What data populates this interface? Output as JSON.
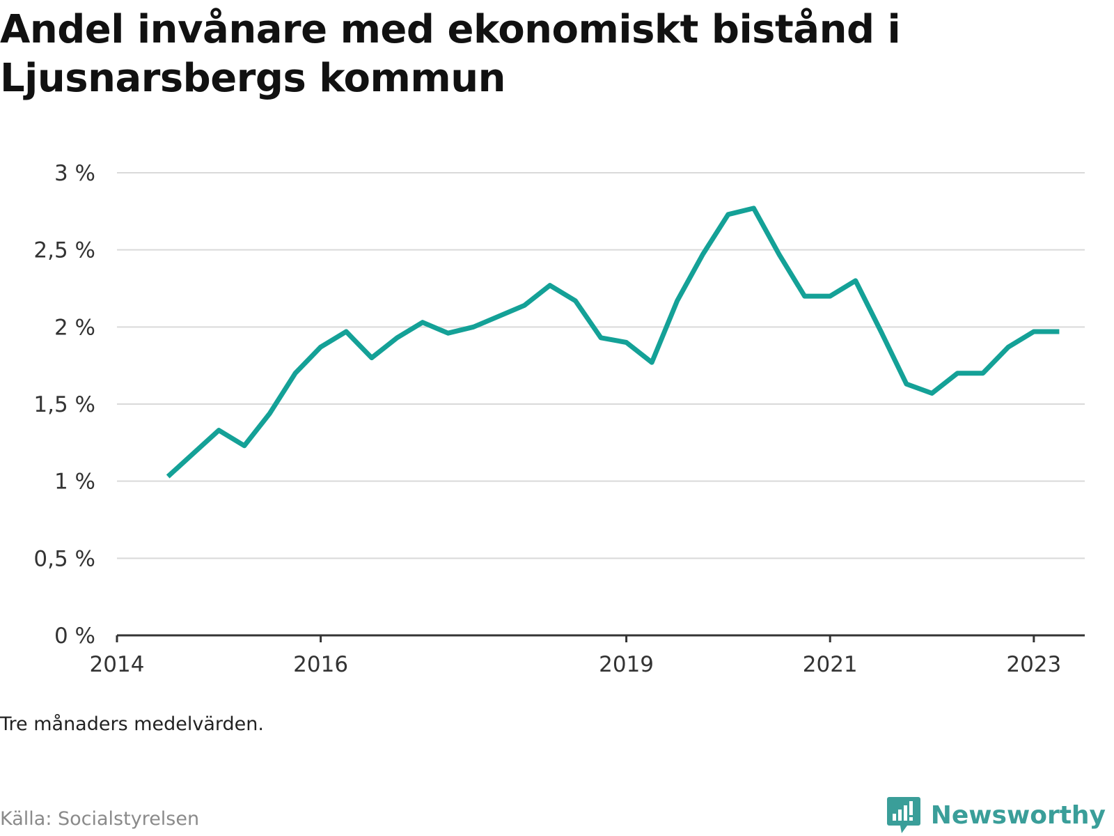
{
  "title": "Andel invånare med ekonomiskt bistånd i Ljusnarsbergs kommun",
  "note": "Tre månaders medelvärden.",
  "source": "Källa: Socialstyrelsen",
  "brand": "Newsworthy",
  "colors": {
    "line": "#14a197",
    "grid": "#d9d9d9",
    "axis": "#333333",
    "brand": "#3a9e99"
  },
  "chart_data": {
    "type": "line",
    "title": "Andel invånare med ekonomiskt bistånd i Ljusnarsbergs kommun",
    "xlabel": "",
    "ylabel": "",
    "ylim": [
      0,
      3
    ],
    "xlim": [
      "2014-01",
      "2023-07"
    ],
    "grid": true,
    "y_ticks": [
      {
        "value": 0,
        "label": "0 %"
      },
      {
        "value": 0.5,
        "label": "0,5 %"
      },
      {
        "value": 1,
        "label": "1 %"
      },
      {
        "value": 1.5,
        "label": "1,5 %"
      },
      {
        "value": 2,
        "label": "2 %"
      },
      {
        "value": 2.5,
        "label": "2,5 %"
      },
      {
        "value": 3,
        "label": "3 %"
      }
    ],
    "x_ticks": [
      {
        "value": "2014-01",
        "label": "2014"
      },
      {
        "value": "2016-01",
        "label": "2016"
      },
      {
        "value": "2019-01",
        "label": "2019"
      },
      {
        "value": "2021-01",
        "label": "2021"
      },
      {
        "value": "2023-01",
        "label": "2023"
      }
    ],
    "series": [
      {
        "x": [
          "2014-07",
          "2014-10",
          "2015-01",
          "2015-04",
          "2015-07",
          "2015-10",
          "2016-01",
          "2016-04",
          "2016-07",
          "2016-10",
          "2017-01",
          "2017-04",
          "2017-07",
          "2017-10",
          "2018-01",
          "2018-04",
          "2018-07",
          "2018-10",
          "2019-01",
          "2019-04",
          "2019-07",
          "2019-10",
          "2020-01",
          "2020-04",
          "2020-07",
          "2020-10",
          "2021-01",
          "2021-04",
          "2021-07",
          "2021-10",
          "2022-01",
          "2022-04",
          "2022-07",
          "2022-10",
          "2023-01",
          "2023-04"
        ],
        "values": [
          1.03,
          1.18,
          1.33,
          1.23,
          1.44,
          1.7,
          1.87,
          1.97,
          1.8,
          1.93,
          2.03,
          1.96,
          2.0,
          2.07,
          2.14,
          2.27,
          2.17,
          1.93,
          1.9,
          1.77,
          2.17,
          2.47,
          2.73,
          2.77,
          2.47,
          2.2,
          2.2,
          2.3,
          1.97,
          1.63,
          1.57,
          1.7,
          1.7,
          1.87,
          1.97,
          1.97
        ]
      }
    ]
  }
}
